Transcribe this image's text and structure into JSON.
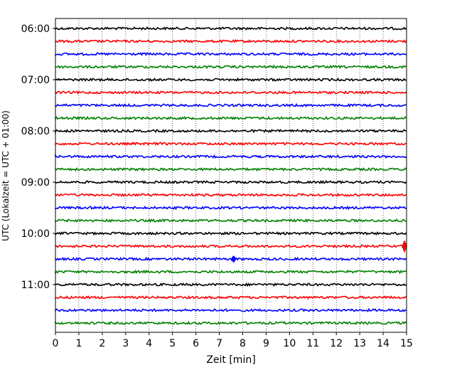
{
  "chart_data": {
    "type": "line",
    "subtype": "seismogram-helicorder",
    "title": "",
    "xlabel": "Zeit  [min]",
    "ylabel": "UTC (Lokalzeit = UTC + 01:00)",
    "xlim": [
      0,
      15
    ],
    "x_ticks": [
      0,
      1,
      2,
      3,
      4,
      5,
      6,
      7,
      8,
      9,
      10,
      11,
      12,
      13,
      14,
      15
    ],
    "y_ticks": [
      {
        "label": "06:00",
        "minutes_after_start": 0
      },
      {
        "label": "07:00",
        "minutes_after_start": 60
      },
      {
        "label": "08:00",
        "minutes_after_start": 120
      },
      {
        "label": "09:00",
        "minutes_after_start": 180
      },
      {
        "label": "10:00",
        "minutes_after_start": 240
      },
      {
        "label": "11:00",
        "minutes_after_start": 300
      }
    ],
    "trace_interval_min": 15,
    "trace_count": 24,
    "trace_colors": [
      "#000000",
      "#ff0000",
      "#0000ff",
      "#008000"
    ],
    "x_grid": "dotted",
    "events": [
      {
        "trace_index": 17,
        "x_min": 14.9,
        "relative_amplitude": 2.2
      },
      {
        "trace_index": 18,
        "x_min": 7.6,
        "relative_amplitude": 1.3
      }
    ]
  }
}
